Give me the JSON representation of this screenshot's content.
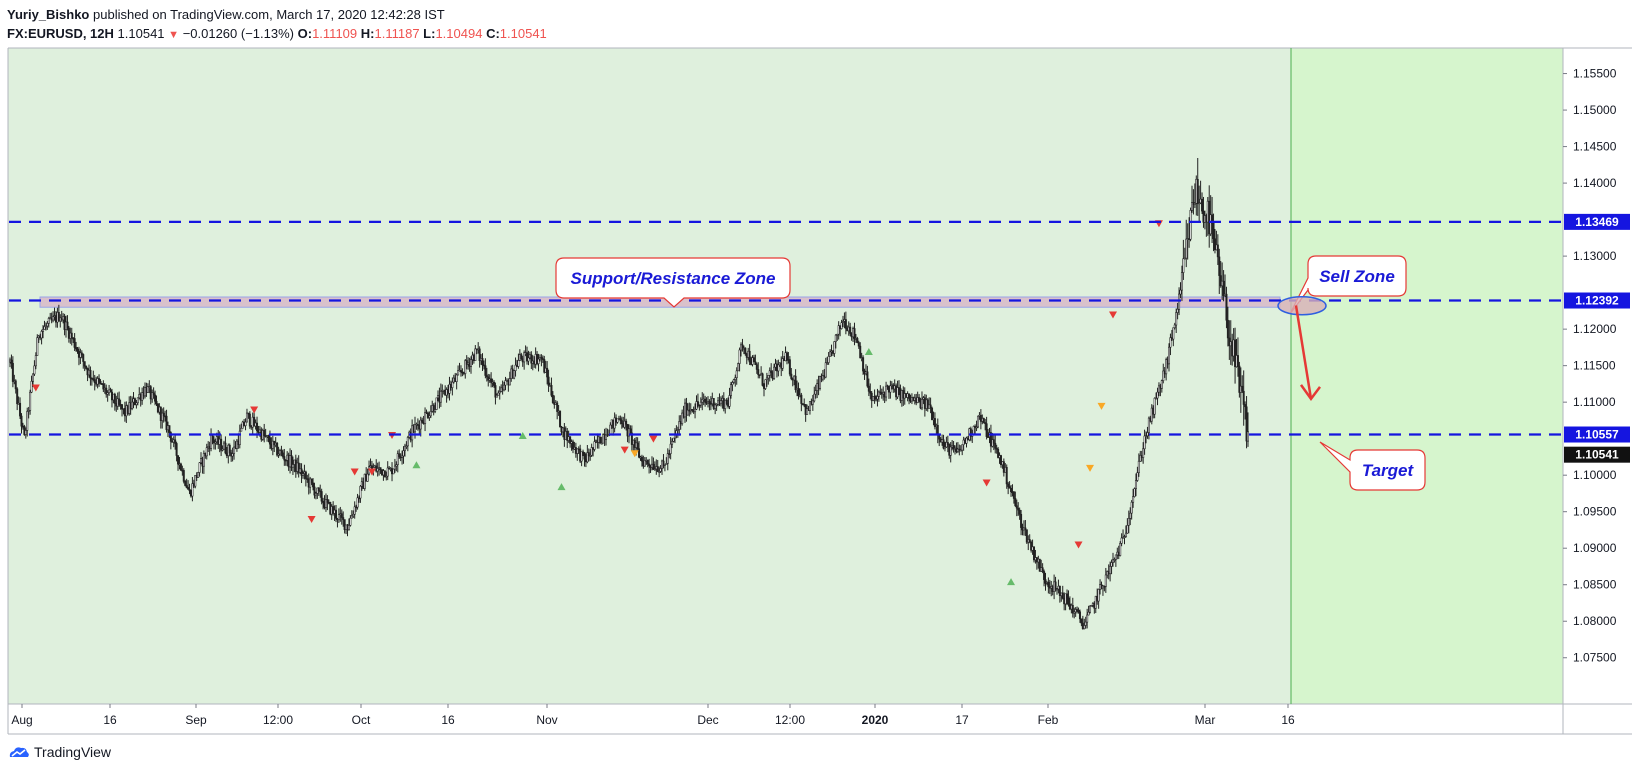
{
  "header": {
    "author": "Yuriy_Bishko",
    "published_text": "published on TradingView.com, March 17, 2020 12:42:28 IST",
    "symbol": "FX:EURUSD, 12H",
    "last_price": "1.10541",
    "down_arrow": "▼",
    "change": "−0.01260 (−1.13%)",
    "o_label": "O:",
    "o_value": "1.11109",
    "h_label": "H:",
    "h_value": "1.11187",
    "l_label": "L:",
    "l_value": "1.10494",
    "c_label": "C:",
    "c_value": "1.10541"
  },
  "footer": {
    "brand": "TradingView",
    "logo_icon": "tradingview-cloud-icon"
  },
  "colors": {
    "background_past": "#dff0dd",
    "background_future": "#d6f5cd",
    "dashed_line": "#1515e0",
    "candle": "#222222",
    "callout_border": "#e53935",
    "callout_text": "#1a1ad6",
    "price_label_bg": "#1515e0",
    "last_price_bg": "#111111"
  },
  "chart_data": {
    "type": "candlestick",
    "symbol": "FX:EURUSD",
    "timeframe": "12H",
    "ylim": [
      1.0725,
      1.1585
    ],
    "y_ticks": [
      "1.15500",
      "1.15000",
      "1.14500",
      "1.14000",
      "1.13000",
      "1.12000",
      "1.11500",
      "1.11000",
      "1.10000",
      "1.09500",
      "1.09000",
      "1.08500",
      "1.08000",
      "1.07500"
    ],
    "x_ticks": [
      {
        "label": "Aug",
        "bold": false
      },
      {
        "label": "16",
        "bold": false
      },
      {
        "label": "Sep",
        "bold": false
      },
      {
        "label": "12:00",
        "bold": false
      },
      {
        "label": "Oct",
        "bold": false
      },
      {
        "label": "16",
        "bold": false
      },
      {
        "label": "Nov",
        "bold": false
      },
      {
        "label": "Dec",
        "bold": false
      },
      {
        "label": "12:00",
        "bold": false
      },
      {
        "label": "2020",
        "bold": true
      },
      {
        "label": "17",
        "bold": false
      },
      {
        "label": "Feb",
        "bold": false
      },
      {
        "label": "Mar",
        "bold": false
      },
      {
        "label": "16",
        "bold": false
      }
    ],
    "anchors": [
      [
        0,
        1.1155
      ],
      [
        10,
        1.105
      ],
      [
        20,
        1.1195
      ],
      [
        35,
        1.122
      ],
      [
        55,
        1.114
      ],
      [
        80,
        1.1085
      ],
      [
        95,
        1.112
      ],
      [
        110,
        1.1065
      ],
      [
        125,
        1.0975
      ],
      [
        140,
        1.105
      ],
      [
        155,
        1.103
      ],
      [
        165,
        1.108
      ],
      [
        185,
        1.1035
      ],
      [
        200,
        1.101
      ],
      [
        220,
        1.096
      ],
      [
        235,
        1.093
      ],
      [
        250,
        1.101
      ],
      [
        265,
        1.1005
      ],
      [
        280,
        1.106
      ],
      [
        295,
        1.1095
      ],
      [
        310,
        1.113
      ],
      [
        325,
        1.117
      ],
      [
        340,
        1.1105
      ],
      [
        355,
        1.116
      ],
      [
        370,
        1.116
      ],
      [
        385,
        1.106
      ],
      [
        400,
        1.102
      ],
      [
        415,
        1.106
      ],
      [
        425,
        1.108
      ],
      [
        440,
        1.102
      ],
      [
        455,
        1.101
      ],
      [
        470,
        1.109
      ],
      [
        485,
        1.11
      ],
      [
        500,
        1.11
      ],
      [
        510,
        1.118
      ],
      [
        525,
        1.1125
      ],
      [
        540,
        1.116
      ],
      [
        555,
        1.1085
      ],
      [
        570,
        1.1155
      ],
      [
        580,
        1.1215
      ],
      [
        590,
        1.1185
      ],
      [
        600,
        1.11
      ],
      [
        612,
        1.112
      ],
      [
        625,
        1.1105
      ],
      [
        640,
        1.1095
      ],
      [
        650,
        1.104
      ],
      [
        660,
        1.103
      ],
      [
        675,
        1.108
      ],
      [
        690,
        1.102
      ],
      [
        705,
        1.093
      ],
      [
        720,
        1.086
      ],
      [
        735,
        1.083
      ],
      [
        748,
        1.0795
      ],
      [
        762,
        1.0855
      ],
      [
        775,
        1.091
      ],
      [
        790,
        1.105
      ],
      [
        805,
        1.115
      ],
      [
        815,
        1.125
      ],
      [
        825,
        1.139
      ],
      [
        835,
        1.135
      ],
      [
        845,
        1.124
      ],
      [
        855,
        1.113
      ],
      [
        862,
        1.1055
      ]
    ],
    "candle_count": 863,
    "lines": [
      {
        "name": "resistance",
        "value": 1.13469,
        "label": "1.13469"
      },
      {
        "name": "zone",
        "value": 1.12392,
        "label": "1.12392"
      },
      {
        "name": "target",
        "value": 1.10557,
        "label": "1.10557"
      }
    ],
    "zone": [
      1.123,
      1.1244
    ],
    "last_price": {
      "value": 1.10541,
      "label": "1.10541"
    },
    "annotations": {
      "support_resistance": "Support/Resistance Zone",
      "sell_zone": "Sell Zone",
      "target": "Target"
    },
    "arrow": {
      "from": 1.1238,
      "to": 1.111
    }
  }
}
